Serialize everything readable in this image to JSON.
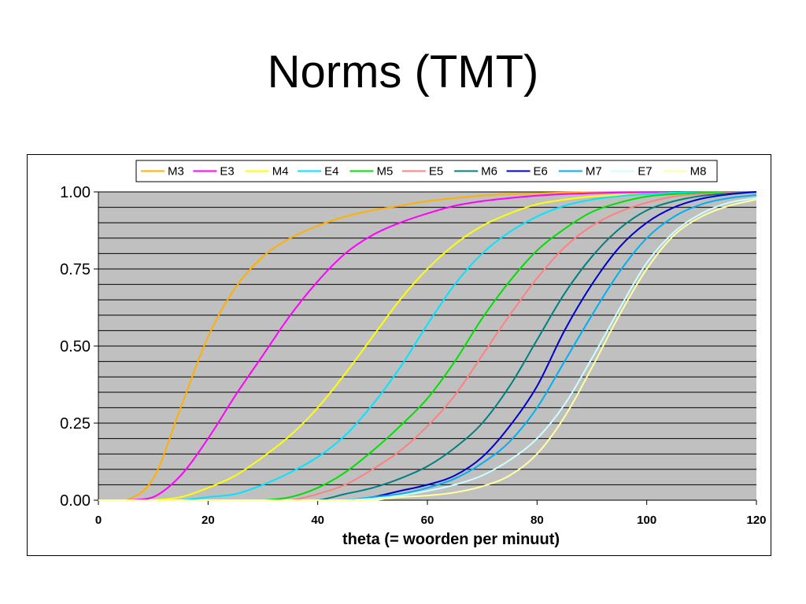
{
  "slide": {
    "title": "Norms (TMT)"
  },
  "chart_data": {
    "type": "line",
    "title": "",
    "xlabel": "theta (= woorden per minuut)",
    "ylabel": "",
    "xlim": [
      0,
      120
    ],
    "ylim": [
      0,
      1
    ],
    "x_ticks": [
      "0",
      "20",
      "40",
      "60",
      "80",
      "100",
      "120"
    ],
    "y_ticks": [
      "0.00",
      "0.25",
      "0.50",
      "0.75",
      "1.00"
    ],
    "grid": "horizontal, every 0.05",
    "plot_background": "#c0c0c0",
    "legend_position": "top",
    "x": [
      0,
      5,
      10,
      15,
      20,
      25,
      30,
      35,
      40,
      45,
      50,
      55,
      60,
      65,
      70,
      75,
      80,
      85,
      90,
      95,
      100,
      105,
      110,
      115,
      120
    ],
    "series": [
      {
        "name": "M3",
        "color": "#ffb000",
        "values": [
          0,
          0,
          0.07,
          0.3,
          0.53,
          0.69,
          0.79,
          0.85,
          0.89,
          0.92,
          0.94,
          0.955,
          0.97,
          0.98,
          0.988,
          0.993,
          0.996,
          0.998,
          0.999,
          1,
          1,
          1,
          1,
          1,
          1
        ]
      },
      {
        "name": "E3",
        "color": "#ff00ff",
        "values": [
          0,
          0,
          0.01,
          0.08,
          0.2,
          0.34,
          0.47,
          0.6,
          0.71,
          0.8,
          0.86,
          0.9,
          0.93,
          0.955,
          0.97,
          0.98,
          0.988,
          0.993,
          0.996,
          0.998,
          0.999,
          1,
          1,
          1,
          1
        ]
      },
      {
        "name": "M4",
        "color": "#ffff00",
        "values": [
          0,
          0,
          0,
          0.01,
          0.04,
          0.08,
          0.14,
          0.21,
          0.3,
          0.41,
          0.53,
          0.65,
          0.75,
          0.83,
          0.89,
          0.93,
          0.96,
          0.975,
          0.985,
          0.99,
          0.994,
          0.997,
          0.999,
          1,
          1
        ]
      },
      {
        "name": "E4",
        "color": "#00e5ff",
        "values": [
          0,
          0,
          0,
          0,
          0.01,
          0.02,
          0.05,
          0.09,
          0.14,
          0.21,
          0.31,
          0.43,
          0.57,
          0.7,
          0.8,
          0.87,
          0.92,
          0.955,
          0.975,
          0.986,
          0.993,
          0.997,
          0.999,
          1,
          1
        ]
      },
      {
        "name": "M5",
        "color": "#00e000",
        "values": [
          0,
          0,
          0,
          0,
          0,
          0,
          0,
          0.01,
          0.04,
          0.09,
          0.16,
          0.24,
          0.33,
          0.45,
          0.59,
          0.71,
          0.81,
          0.88,
          0.935,
          0.965,
          0.985,
          0.993,
          0.997,
          0.999,
          1
        ]
      },
      {
        "name": "E5",
        "color": "#ff8080",
        "values": [
          0,
          0,
          0,
          0,
          0,
          0,
          0,
          0,
          0.02,
          0.05,
          0.1,
          0.16,
          0.24,
          0.34,
          0.47,
          0.6,
          0.72,
          0.82,
          0.89,
          0.935,
          0.965,
          0.985,
          0.993,
          0.997,
          1
        ]
      },
      {
        "name": "M6",
        "color": "#008080",
        "values": [
          0,
          0,
          0,
          0,
          0,
          0,
          0,
          0,
          0,
          0.02,
          0.04,
          0.07,
          0.11,
          0.17,
          0.25,
          0.37,
          0.52,
          0.67,
          0.79,
          0.88,
          0.94,
          0.97,
          0.987,
          0.995,
          1
        ]
      },
      {
        "name": "E6",
        "color": "#0000d0",
        "values": [
          0,
          0,
          0,
          0,
          0,
          0,
          0,
          0,
          0,
          0,
          0.01,
          0.03,
          0.05,
          0.08,
          0.14,
          0.24,
          0.37,
          0.55,
          0.7,
          0.82,
          0.9,
          0.95,
          0.978,
          0.992,
          1
        ]
      },
      {
        "name": "M7",
        "color": "#00b0f0",
        "values": [
          0,
          0,
          0,
          0,
          0,
          0,
          0,
          0,
          0,
          0,
          0.01,
          0.02,
          0.04,
          0.07,
          0.12,
          0.19,
          0.3,
          0.45,
          0.6,
          0.74,
          0.85,
          0.92,
          0.96,
          0.98,
          0.99
        ]
      },
      {
        "name": "E7",
        "color": "#ccffff",
        "values": [
          0,
          0,
          0,
          0,
          0,
          0,
          0,
          0,
          0,
          0,
          0.005,
          0.015,
          0.03,
          0.05,
          0.08,
          0.13,
          0.2,
          0.31,
          0.46,
          0.62,
          0.77,
          0.87,
          0.93,
          0.965,
          0.98
        ]
      },
      {
        "name": "M8",
        "color": "#ffffa0",
        "values": [
          0,
          0,
          0,
          0,
          0,
          0,
          0,
          0,
          0,
          0,
          0,
          0.01,
          0.015,
          0.025,
          0.045,
          0.08,
          0.15,
          0.27,
          0.43,
          0.6,
          0.75,
          0.86,
          0.92,
          0.955,
          0.975
        ]
      }
    ]
  }
}
